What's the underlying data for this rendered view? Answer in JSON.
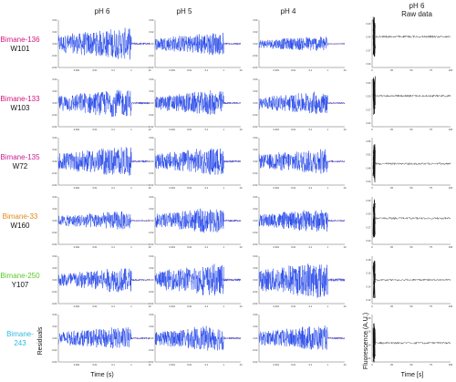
{
  "figure": {
    "columns": [
      {
        "key": "ph6",
        "title": "pH 6"
      },
      {
        "key": "ph5",
        "title": "pH 5"
      },
      {
        "key": "ph4",
        "title": "pH 4"
      },
      {
        "key": "raw",
        "title": "pH 6",
        "subtitle": "Raw data"
      }
    ],
    "rows": [
      {
        "probe": "Bimane-136",
        "probe_color": "#d6177e",
        "residue": "W101",
        "residue_color": "#111111"
      },
      {
        "probe": "Bimane-133",
        "probe_color": "#d6177e",
        "residue": "W103",
        "residue_color": "#111111"
      },
      {
        "probe": "Bimane-135",
        "probe_color": "#c8208f",
        "residue": "W72",
        "residue_color": "#111111"
      },
      {
        "probe": "Bimane-33",
        "probe_color": "#e0891c",
        "residue": "W160",
        "residue_color": "#111111"
      },
      {
        "probe": "Bimane-250",
        "probe_color": "#5cc928",
        "residue": "Y107",
        "residue_color": "#111111"
      },
      {
        "probe": "Bimane-",
        "probe_color": "#31b9e0",
        "residue": "243",
        "residue_color": "#31b9e0"
      }
    ],
    "xlabel_residuals": "Time (s)",
    "ylabel_residuals": "Residuals",
    "xlabel_raw": "Time [s]",
    "ylabel_raw": "Fluorescence (A.U.)"
  },
  "chart_data": {
    "type": "line",
    "panels": "6 rows x 4 columns; columns 1-3: residuals of fits vs time (log time axis), column 4: raw fluorescence traces vs time at pH 6",
    "residuals": {
      "x_scale": "log",
      "xlim": [
        0.0001,
        10
      ],
      "x_tick_labels": [
        "0.001",
        "0.01",
        "0.1",
        "1",
        "10"
      ],
      "ylim": [
        -0.04,
        0.04
      ],
      "y_tick_labels": [
        "-0.04",
        "-0.02",
        "0.00",
        "0.02",
        "0.04"
      ],
      "series_colors": {
        "residual": "#1a3ee8",
        "fit_line": "#c03040"
      },
      "amplitude_envelope_by_row_col": [
        [
          0.025,
          0.018,
          0.012
        ],
        [
          0.022,
          0.02,
          0.018
        ],
        [
          0.024,
          0.022,
          0.02
        ],
        [
          0.015,
          0.02,
          0.018
        ],
        [
          0.02,
          0.025,
          0.03
        ],
        [
          0.018,
          0.02,
          0.02
        ]
      ]
    },
    "raw": {
      "x_scale": "linear",
      "xlim": [
        0,
        100
      ],
      "x_tick_labels": [
        "0",
        "25",
        "50",
        "75",
        "100"
      ],
      "y_tick_labels_by_row": [
        [
          "0.43",
          "0.40",
          "0.37",
          "0.34"
        ],
        [
          "0.33",
          "0.30",
          "0.27",
          "0.24"
        ],
        [
          "0.56",
          "0.52",
          "0.48",
          "0.44"
        ],
        [
          "0.33",
          "0.30",
          "0.27",
          "0.24"
        ],
        [
          "0.18",
          "0.16",
          "0.14",
          "0.12"
        ],
        [
          "0.28",
          "0.26",
          "0.24",
          "0.22"
        ]
      ],
      "trace_color": "#555555",
      "trace_level_fraction_by_row": [
        0.35,
        0.35,
        0.55,
        0.45,
        0.5,
        0.6
      ]
    }
  }
}
